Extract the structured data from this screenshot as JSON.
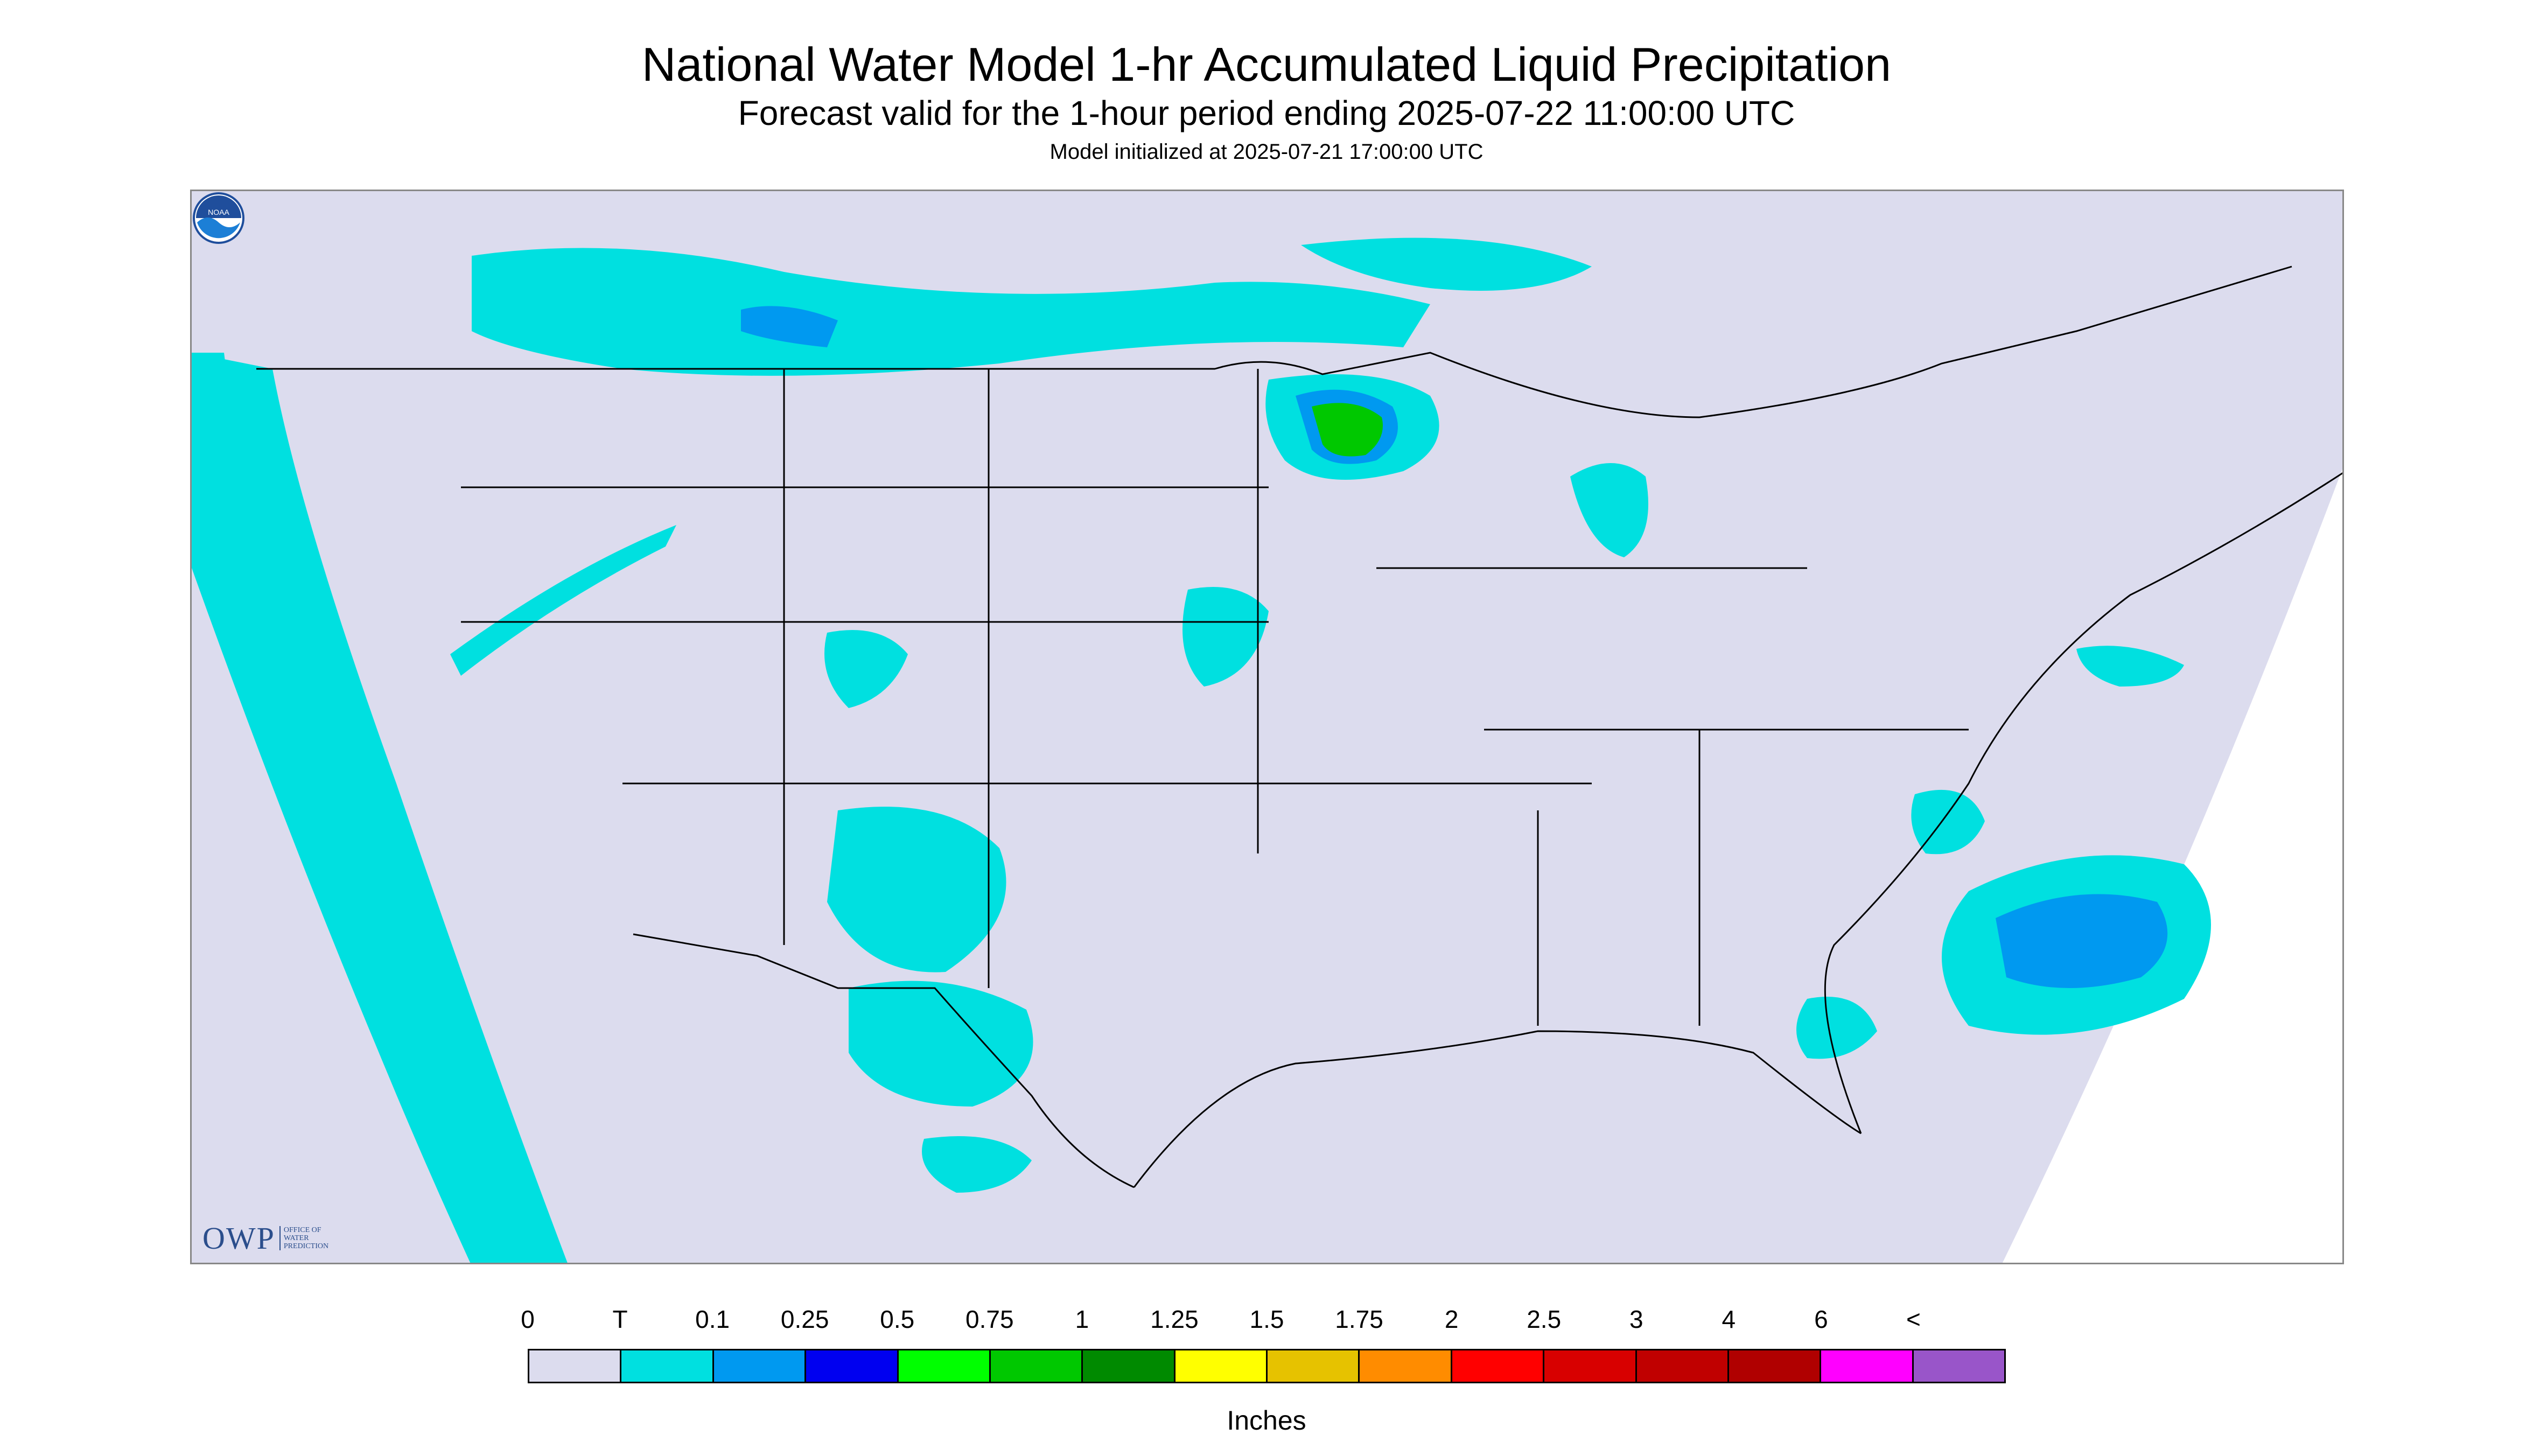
{
  "header": {
    "title": "National Water Model 1-hr Accumulated Liquid Precipitation",
    "subtitle": "Forecast valid for the 1-hour period ending 2025-07-22 11:00:00 UTC",
    "init": "Model initialized at 2025-07-21 17:00:00 UTC"
  },
  "logos": {
    "owp_text": "OWP",
    "owp_sub_1": "OFFICE OF",
    "owp_sub_2": "WATER",
    "owp_sub_3": "PREDICTION",
    "noaa_text": "NOAA"
  },
  "legend": {
    "labels": [
      "0",
      "T",
      "0.1",
      "0.25",
      "0.5",
      "0.75",
      "1",
      "1.25",
      "1.5",
      "1.75",
      "2",
      "2.5",
      "3",
      "4",
      "6",
      "<"
    ],
    "colors": [
      "#dcdcee",
      "#00e0e0",
      "#0099f0",
      "#0000f0",
      "#00ff00",
      "#00c800",
      "#008a00",
      "#ffff00",
      "#e6c200",
      "#ff8c00",
      "#ff0000",
      "#d80000",
      "#c00000",
      "#b00000",
      "#ff00ff",
      "#9955c9"
    ],
    "units": "Inches"
  },
  "colors": {
    "background_no_precip": "#dcdcee",
    "trace": "#00e0e0",
    "light_blue": "#0099f0",
    "blue": "#0000f0",
    "outside_domain": "#ffffff",
    "border_lines": "#000000"
  }
}
